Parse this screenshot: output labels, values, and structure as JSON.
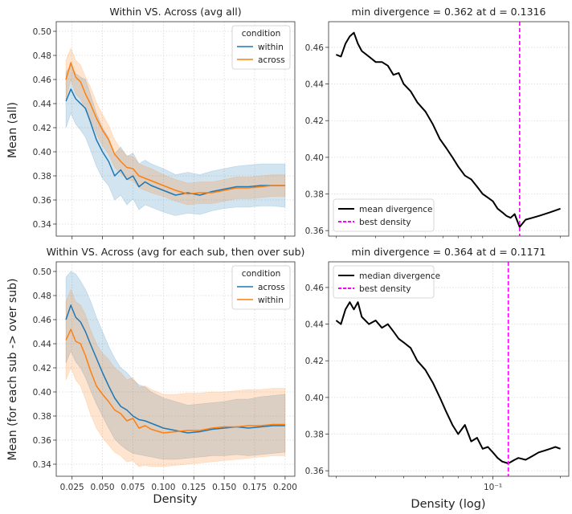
{
  "figure": {
    "ylabel_top": "Mean (all)",
    "ylabel_bottom": "Mean (for each sub -> over sub)",
    "xlabel_left": "Density",
    "xlabel_right": "Density (log)"
  },
  "chart_data": [
    {
      "type": "line",
      "title": "Within VS. Across (avg all)",
      "legend_title": "condition",
      "legend_position": "top-right",
      "grid": true,
      "xlim": [
        0.012,
        0.208
      ],
      "ylim": [
        0.33,
        0.508
      ],
      "xticks": [
        0.025,
        0.05,
        0.075,
        0.1,
        0.125,
        0.15,
        0.175,
        0.2
      ],
      "xtick_labels": [
        "",
        "",
        "",
        "",
        "",
        "",
        "",
        ""
      ],
      "yticks": [
        0.34,
        0.36,
        0.38,
        0.4,
        0.42,
        0.44,
        0.46,
        0.48,
        0.5
      ],
      "ytick_labels": [
        "0.34",
        "0.36",
        "0.38",
        "0.40",
        "0.42",
        "0.44",
        "0.46",
        "0.48",
        "0.50"
      ],
      "series": [
        {
          "name": "within",
          "color": "#1f77b4",
          "x": [
            0.02,
            0.024,
            0.028,
            0.032,
            0.036,
            0.04,
            0.045,
            0.05,
            0.055,
            0.06,
            0.065,
            0.07,
            0.075,
            0.08,
            0.085,
            0.09,
            0.1,
            0.11,
            0.12,
            0.13,
            0.14,
            0.15,
            0.16,
            0.17,
            0.18,
            0.19,
            0.2
          ],
          "y": [
            0.442,
            0.452,
            0.444,
            0.44,
            0.436,
            0.425,
            0.41,
            0.4,
            0.392,
            0.38,
            0.385,
            0.377,
            0.38,
            0.371,
            0.375,
            0.372,
            0.368,
            0.364,
            0.366,
            0.364,
            0.367,
            0.369,
            0.371,
            0.371,
            0.372,
            0.372,
            0.372
          ],
          "ci_lower": [
            0.42,
            0.432,
            0.423,
            0.418,
            0.412,
            0.402,
            0.388,
            0.378,
            0.372,
            0.36,
            0.364,
            0.356,
            0.361,
            0.352,
            0.356,
            0.354,
            0.35,
            0.347,
            0.349,
            0.348,
            0.351,
            0.353,
            0.354,
            0.354,
            0.355,
            0.355,
            0.354
          ],
          "ci_upper": [
            0.466,
            0.472,
            0.465,
            0.462,
            0.46,
            0.448,
            0.432,
            0.42,
            0.412,
            0.398,
            0.404,
            0.396,
            0.399,
            0.39,
            0.393,
            0.39,
            0.386,
            0.381,
            0.383,
            0.381,
            0.384,
            0.386,
            0.388,
            0.389,
            0.39,
            0.39,
            0.39
          ]
        },
        {
          "name": "across",
          "color": "#ff7f0e",
          "x": [
            0.02,
            0.024,
            0.028,
            0.032,
            0.036,
            0.04,
            0.045,
            0.05,
            0.055,
            0.06,
            0.065,
            0.07,
            0.075,
            0.08,
            0.085,
            0.09,
            0.1,
            0.11,
            0.12,
            0.13,
            0.14,
            0.15,
            0.16,
            0.17,
            0.18,
            0.19,
            0.2
          ],
          "y": [
            0.46,
            0.474,
            0.462,
            0.458,
            0.448,
            0.44,
            0.428,
            0.418,
            0.41,
            0.398,
            0.392,
            0.387,
            0.386,
            0.38,
            0.378,
            0.376,
            0.372,
            0.368,
            0.365,
            0.366,
            0.366,
            0.368,
            0.37,
            0.37,
            0.371,
            0.372,
            0.372
          ],
          "ci_lower": [
            0.444,
            0.46,
            0.448,
            0.444,
            0.434,
            0.427,
            0.415,
            0.405,
            0.398,
            0.387,
            0.382,
            0.377,
            0.376,
            0.37,
            0.368,
            0.366,
            0.363,
            0.359,
            0.356,
            0.357,
            0.357,
            0.359,
            0.361,
            0.361,
            0.362,
            0.363,
            0.363
          ],
          "ci_upper": [
            0.476,
            0.486,
            0.476,
            0.472,
            0.462,
            0.454,
            0.441,
            0.431,
            0.422,
            0.41,
            0.402,
            0.397,
            0.396,
            0.39,
            0.388,
            0.386,
            0.381,
            0.377,
            0.374,
            0.375,
            0.375,
            0.377,
            0.379,
            0.379,
            0.38,
            0.381,
            0.381
          ]
        }
      ]
    },
    {
      "type": "line",
      "title": "min divergence = 0.362 at d = 0.1316",
      "legend_position": "lower-left",
      "grid": true,
      "xscale": "log",
      "xlim": [
        0.0185,
        0.218
      ],
      "ylim": [
        0.357,
        0.474
      ],
      "xticks_minor": [
        0.02,
        0.03,
        0.04,
        0.05,
        0.06,
        0.07,
        0.08,
        0.09,
        0.2
      ],
      "yticks": [
        0.36,
        0.38,
        0.4,
        0.42,
        0.44,
        0.46
      ],
      "ytick_labels": [
        "0.36",
        "0.38",
        "0.40",
        "0.42",
        "0.44",
        "0.46"
      ],
      "best_density": 0.1316,
      "series": [
        {
          "name": "mean divergence",
          "color": "#000000",
          "x": [
            0.02,
            0.021,
            0.022,
            0.023,
            0.024,
            0.025,
            0.026,
            0.028,
            0.03,
            0.032,
            0.034,
            0.036,
            0.038,
            0.04,
            0.043,
            0.046,
            0.05,
            0.054,
            0.058,
            0.062,
            0.066,
            0.07,
            0.075,
            0.08,
            0.085,
            0.09,
            0.095,
            0.1,
            0.105,
            0.11,
            0.115,
            0.12,
            0.125,
            0.1316,
            0.14,
            0.15,
            0.16,
            0.17,
            0.18,
            0.19,
            0.2
          ],
          "y": [
            0.456,
            0.455,
            0.462,
            0.466,
            0.468,
            0.462,
            0.458,
            0.455,
            0.452,
            0.452,
            0.45,
            0.445,
            0.446,
            0.44,
            0.436,
            0.43,
            0.425,
            0.418,
            0.41,
            0.405,
            0.4,
            0.395,
            0.39,
            0.388,
            0.384,
            0.38,
            0.378,
            0.376,
            0.372,
            0.37,
            0.368,
            0.367,
            0.369,
            0.362,
            0.366,
            0.367,
            0.368,
            0.369,
            0.37,
            0.371,
            0.372
          ]
        },
        {
          "name": "best density",
          "color": "#ff00ff"
        }
      ]
    },
    {
      "type": "line",
      "title": "Within VS. Across (avg for each sub, then over sub)",
      "legend_title": "condition",
      "legend_position": "top-right",
      "grid": true,
      "xlim": [
        0.012,
        0.208
      ],
      "ylim": [
        0.33,
        0.508
      ],
      "xticks": [
        0.025,
        0.05,
        0.075,
        0.1,
        0.125,
        0.15,
        0.175,
        0.2
      ],
      "xtick_labels": [
        "0.025",
        "0.050",
        "0.075",
        "0.100",
        "0.125",
        "0.150",
        "0.175",
        "0.200"
      ],
      "yticks": [
        0.34,
        0.36,
        0.38,
        0.4,
        0.42,
        0.44,
        0.46,
        0.48,
        0.5
      ],
      "ytick_labels": [
        "0.34",
        "0.36",
        "0.38",
        "0.40",
        "0.42",
        "0.44",
        "0.46",
        "0.48",
        "0.50"
      ],
      "series": [
        {
          "name": "across",
          "color": "#1f77b4",
          "x": [
            0.02,
            0.024,
            0.028,
            0.032,
            0.036,
            0.04,
            0.045,
            0.05,
            0.055,
            0.06,
            0.065,
            0.07,
            0.075,
            0.08,
            0.085,
            0.09,
            0.1,
            0.11,
            0.12,
            0.13,
            0.14,
            0.15,
            0.16,
            0.17,
            0.18,
            0.19,
            0.2
          ],
          "y": [
            0.46,
            0.472,
            0.462,
            0.458,
            0.45,
            0.44,
            0.428,
            0.416,
            0.405,
            0.395,
            0.388,
            0.385,
            0.38,
            0.377,
            0.376,
            0.374,
            0.37,
            0.368,
            0.366,
            0.367,
            0.369,
            0.37,
            0.371,
            0.37,
            0.371,
            0.372,
            0.372
          ],
          "ci_lower": [
            0.424,
            0.434,
            0.425,
            0.42,
            0.412,
            0.402,
            0.39,
            0.38,
            0.37,
            0.361,
            0.356,
            0.352,
            0.349,
            0.348,
            0.347,
            0.346,
            0.344,
            0.344,
            0.345,
            0.346,
            0.347,
            0.347,
            0.348,
            0.347,
            0.348,
            0.349,
            0.35
          ],
          "ci_upper": [
            0.495,
            0.5,
            0.498,
            0.492,
            0.485,
            0.476,
            0.462,
            0.45,
            0.438,
            0.428,
            0.42,
            0.416,
            0.41,
            0.406,
            0.404,
            0.4,
            0.395,
            0.392,
            0.389,
            0.39,
            0.391,
            0.392,
            0.394,
            0.394,
            0.396,
            0.397,
            0.398
          ]
        },
        {
          "name": "within",
          "color": "#ff7f0e",
          "x": [
            0.02,
            0.024,
            0.028,
            0.032,
            0.036,
            0.04,
            0.045,
            0.05,
            0.055,
            0.06,
            0.065,
            0.07,
            0.075,
            0.08,
            0.085,
            0.09,
            0.1,
            0.11,
            0.12,
            0.13,
            0.14,
            0.15,
            0.16,
            0.17,
            0.18,
            0.19,
            0.2
          ],
          "y": [
            0.443,
            0.452,
            0.442,
            0.44,
            0.43,
            0.418,
            0.405,
            0.398,
            0.392,
            0.385,
            0.382,
            0.376,
            0.378,
            0.37,
            0.372,
            0.369,
            0.366,
            0.367,
            0.368,
            0.368,
            0.37,
            0.371,
            0.371,
            0.372,
            0.372,
            0.373,
            0.373
          ],
          "ci_lower": [
            0.41,
            0.42,
            0.41,
            0.405,
            0.394,
            0.382,
            0.37,
            0.362,
            0.356,
            0.35,
            0.347,
            0.342,
            0.343,
            0.338,
            0.339,
            0.338,
            0.338,
            0.339,
            0.34,
            0.341,
            0.342,
            0.343,
            0.344,
            0.345,
            0.346,
            0.347,
            0.347
          ],
          "ci_upper": [
            0.475,
            0.485,
            0.475,
            0.472,
            0.464,
            0.452,
            0.44,
            0.432,
            0.427,
            0.42,
            0.416,
            0.41,
            0.412,
            0.404,
            0.405,
            0.402,
            0.398,
            0.398,
            0.399,
            0.399,
            0.4,
            0.4,
            0.401,
            0.402,
            0.402,
            0.403,
            0.403
          ]
        }
      ]
    },
    {
      "type": "line",
      "title": "min divergence = 0.364 at d = 0.1171",
      "legend_position": "top-left",
      "grid": true,
      "xscale": "log",
      "xlim": [
        0.0185,
        0.218
      ],
      "ylim": [
        0.357,
        0.474
      ],
      "xticks": [
        0.1
      ],
      "xtick_labels": [
        "10⁻¹"
      ],
      "xticks_minor": [
        0.02,
        0.03,
        0.04,
        0.05,
        0.06,
        0.07,
        0.08,
        0.09,
        0.2
      ],
      "yticks": [
        0.36,
        0.38,
        0.4,
        0.42,
        0.44,
        0.46
      ],
      "ytick_labels": [
        "0.36",
        "0.38",
        "0.40",
        "0.42",
        "0.44",
        "0.46"
      ],
      "best_density": 0.1171,
      "series": [
        {
          "name": "median divergence",
          "color": "#000000",
          "x": [
            0.02,
            0.021,
            0.022,
            0.023,
            0.024,
            0.025,
            0.026,
            0.028,
            0.03,
            0.032,
            0.034,
            0.036,
            0.038,
            0.04,
            0.043,
            0.046,
            0.05,
            0.054,
            0.058,
            0.062,
            0.066,
            0.07,
            0.075,
            0.08,
            0.085,
            0.09,
            0.095,
            0.1,
            0.105,
            0.11,
            0.1171,
            0.125,
            0.13,
            0.14,
            0.15,
            0.16,
            0.17,
            0.18,
            0.19,
            0.2
          ],
          "y": [
            0.442,
            0.44,
            0.448,
            0.452,
            0.448,
            0.452,
            0.444,
            0.44,
            0.442,
            0.438,
            0.44,
            0.436,
            0.432,
            0.43,
            0.427,
            0.42,
            0.415,
            0.408,
            0.4,
            0.392,
            0.385,
            0.38,
            0.385,
            0.376,
            0.378,
            0.372,
            0.373,
            0.37,
            0.367,
            0.365,
            0.364,
            0.366,
            0.367,
            0.366,
            0.368,
            0.37,
            0.371,
            0.372,
            0.373,
            0.372
          ]
        },
        {
          "name": "best density",
          "color": "#ff00ff"
        }
      ]
    }
  ]
}
